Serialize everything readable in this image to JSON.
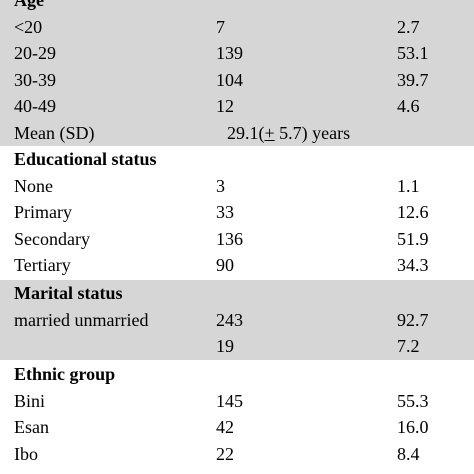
{
  "sections": {
    "age": {
      "title": "Age",
      "rows": [
        {
          "label": "<20",
          "n": "7",
          "pct": "2.7"
        },
        {
          "label": "20-29",
          "n": "139",
          "pct": "53.1"
        },
        {
          "label": "30-39",
          "n": "104",
          "pct": "39.7"
        },
        {
          "label": "40-49",
          "n": "12",
          "pct": "4.6"
        }
      ],
      "mean": {
        "label": "Mean (SD)",
        "pre": "29.1(",
        "pm": "+",
        "post": " 5.7) years"
      }
    },
    "education": {
      "title": "Educational status",
      "rows": [
        {
          "label": "None",
          "n": "3",
          "pct": "1.1"
        },
        {
          "label": "Primary",
          "n": "33",
          "pct": "12.6"
        },
        {
          "label": "Secondary",
          "n": "136",
          "pct": "51.9"
        },
        {
          "label": "Tertiary",
          "n": "90",
          "pct": "34.3"
        }
      ]
    },
    "marital": {
      "title": "Marital status",
      "rows": [
        {
          "label": "married unmarried",
          "n": "243",
          "pct": "92.7"
        },
        {
          "label": "",
          "n": "19",
          "pct": "7.2"
        }
      ]
    },
    "ethnic": {
      "title": "Ethnic group",
      "rows": [
        {
          "label": "Bini",
          "n": "145",
          "pct": "55.3"
        },
        {
          "label": "Esan",
          "n": "42",
          "pct": "16.0"
        },
        {
          "label": "Ibo",
          "n": "22",
          "pct": "8.4"
        }
      ]
    }
  },
  "colors": {
    "shaded": "#d6d6d6",
    "plain": "#ffffff"
  }
}
